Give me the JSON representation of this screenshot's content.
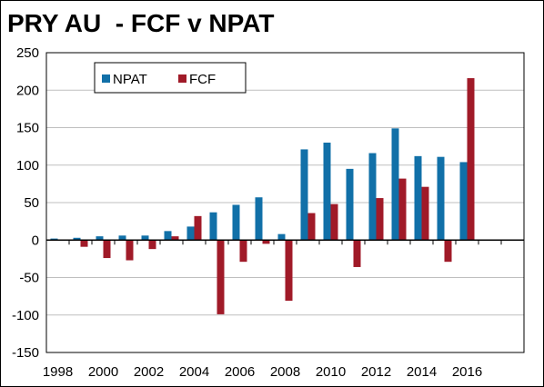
{
  "chart_data": {
    "type": "bar",
    "title": "PRY AU  - FCF v NPAT",
    "xlabel": "",
    "ylabel": "",
    "ylim": [
      -150,
      250
    ],
    "yticks": [
      -150,
      -100,
      -50,
      0,
      50,
      100,
      150,
      200,
      250
    ],
    "categories": [
      "1998",
      "1999",
      "2000",
      "2001",
      "2002",
      "2003",
      "2004",
      "2005",
      "2006",
      "2007",
      "2008",
      "2009",
      "2010",
      "2011",
      "2012",
      "2013",
      "2014",
      "2015",
      "2016"
    ],
    "xtick_labels": [
      "1998",
      "2000",
      "2002",
      "2004",
      "2006",
      "2008",
      "2010",
      "2012",
      "2014",
      "2016"
    ],
    "grid": "horizontal",
    "legend_position": "top-left",
    "series": [
      {
        "name": "NPAT",
        "color": "#1170A8",
        "values": [
          2,
          3,
          5,
          6,
          6,
          12,
          18,
          37,
          47,
          57,
          8,
          121,
          130,
          95,
          116,
          149,
          112,
          111,
          104
        ]
      },
      {
        "name": "FCF",
        "color": "#A01A28",
        "values": [
          0,
          -9,
          -24,
          -27,
          -12,
          5,
          32,
          -99,
          -29,
          -5,
          -81,
          36,
          48,
          -36,
          56,
          82,
          71,
          -29,
          216
        ]
      }
    ]
  }
}
